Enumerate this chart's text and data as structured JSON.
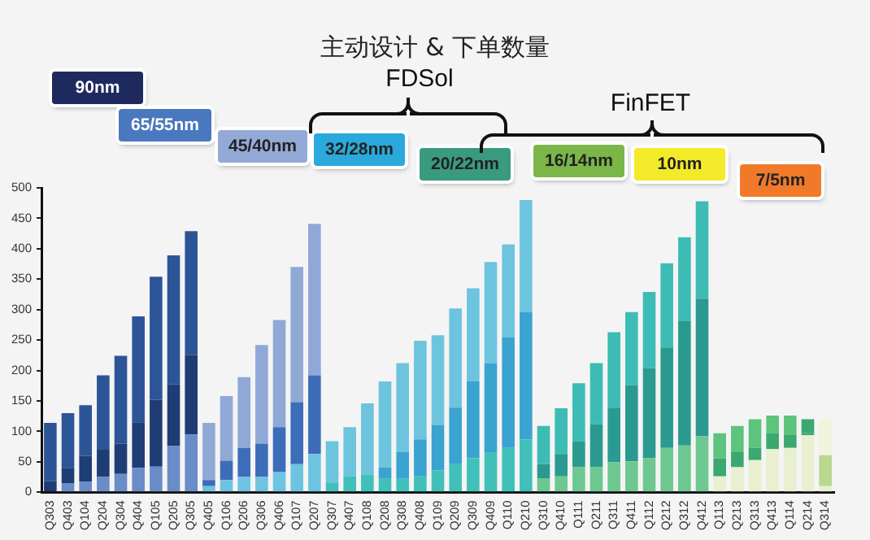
{
  "chart_data": {
    "type": "bar",
    "title": "主动设计 & 下单数量",
    "categories": [
      "Q303",
      "Q403",
      "Q104",
      "Q204",
      "Q304",
      "Q404",
      "Q105",
      "Q205",
      "Q305",
      "Q405",
      "Q106",
      "Q206",
      "Q306",
      "Q406",
      "Q107",
      "Q207",
      "Q307",
      "Q407",
      "Q108",
      "Q208",
      "Q308",
      "Q408",
      "Q109",
      "Q209",
      "Q309",
      "Q409",
      "Q110",
      "Q210",
      "Q310",
      "Q410",
      "Q111",
      "Q211",
      "Q311",
      "Q411",
      "Q112",
      "Q212",
      "Q312",
      "Q412",
      "Q113",
      "Q213",
      "Q313",
      "Q413",
      "Q114",
      "Q214",
      "Q314"
    ],
    "stacked": true,
    "series": [
      {
        "values": [
          0,
          15,
          17,
          25,
          30,
          40,
          42,
          76,
          95,
          10,
          20,
          25,
          25,
          33,
          46,
          63,
          15,
          26,
          29,
          22,
          22,
          26,
          36,
          46,
          56,
          66,
          73,
          87,
          23,
          26,
          41,
          41,
          49,
          51,
          56,
          73,
          77,
          92,
          26,
          41,
          53,
          71,
          73,
          94,
          10
        ],
        "colors": [
          "#6a8cc8",
          "#6a8cc8",
          "#6a8cc8",
          "#6a8cc8",
          "#6a8cc8",
          "#6a8cc8",
          "#6a8cc8",
          "#6a8cc8",
          "#6a8cc8",
          "#6ec3e0",
          "#6ec3e0",
          "#6ec3e0",
          "#6ec3e0",
          "#6ec3e0",
          "#6ec3e0",
          "#6ec3e0",
          "#40c0b8",
          "#40c0b8",
          "#40c0b8",
          "#40c0b8",
          "#40c0b8",
          "#40c0b8",
          "#40c0b8",
          "#40c0b8",
          "#40c0b8",
          "#40c0b8",
          "#40c0b8",
          "#40c0b8",
          "#6cc890",
          "#6cc890",
          "#6cc890",
          "#6cc890",
          "#6cc890",
          "#6cc890",
          "#6cc890",
          "#6cc890",
          "#6cc890",
          "#6cc890",
          "#e8f0d0",
          "#e8f0d0",
          "#e8f0d0",
          "#e8f0d0",
          "#e8f0d0",
          "#e8f0d0",
          "#e8f0d0"
        ]
      },
      {
        "values": [
          18,
          25,
          43,
          45,
          50,
          75,
          110,
          101,
          130,
          10,
          32,
          48,
          55,
          74,
          102,
          129,
          0,
          0,
          0,
          19,
          44,
          61,
          74,
          93,
          126,
          146,
          182,
          209,
          23,
          37,
          43,
          71,
          89,
          125,
          148,
          165,
          204,
          226,
          30,
          25,
          20,
          26,
          21,
          3,
          51
        ],
        "colors": [
          "#1f3d75",
          "#1f3d75",
          "#1f3d75",
          "#1f3d75",
          "#1f3d75",
          "#1f3d75",
          "#1f3d75",
          "#1f3d75",
          "#1f3d75",
          "#3d6cb8",
          "#3d6cb8",
          "#3d6cb8",
          "#3d6cb8",
          "#3d6cb8",
          "#3d6cb8",
          "#3d6cb8",
          "#3aa3d0",
          "#3aa3d0",
          "#3aa3d0",
          "#3aa3d0",
          "#3aa3d0",
          "#3aa3d0",
          "#3aa3d0",
          "#3aa3d0",
          "#3aa3d0",
          "#3aa3d0",
          "#3aa3d0",
          "#3aa3d0",
          "#2a9a90",
          "#2a9a90",
          "#2a9a90",
          "#2a9a90",
          "#2a9a90",
          "#2a9a90",
          "#2a9a90",
          "#2a9a90",
          "#2a9a90",
          "#2a9a90",
          "#3aa870",
          "#3aa870",
          "#3aa870",
          "#3aa870",
          "#3aa870",
          "#3aa870",
          "#b8d890"
        ]
      },
      {
        "values": [
          96,
          90,
          83,
          122,
          144,
          174,
          202,
          212,
          204,
          94,
          106,
          116,
          162,
          176,
          222,
          249,
          69,
          81,
          117,
          141,
          146,
          162,
          148,
          163,
          153,
          166,
          152,
          184,
          63,
          75,
          95,
          100,
          125,
          120,
          125,
          138,
          138,
          160,
          41,
          43,
          47,
          29,
          32,
          23,
          59
        ],
        "colors": [
          "#2c5597",
          "#2c5597",
          "#2c5597",
          "#2c5597",
          "#2c5597",
          "#2c5597",
          "#2c5597",
          "#2c5597",
          "#2c5597",
          "#8fa8d6",
          "#8fa8d6",
          "#8fa8d6",
          "#8fa8d6",
          "#8fa8d6",
          "#8fa8d6",
          "#8fa8d6",
          "#6cc4de",
          "#6cc4de",
          "#6cc4de",
          "#6cc4de",
          "#6cc4de",
          "#6cc4de",
          "#6cc4de",
          "#6cc4de",
          "#6cc4de",
          "#6cc4de",
          "#6cc4de",
          "#6cc4de",
          "#3cbcb4",
          "#3cbcb4",
          "#3cbcb4",
          "#3cbcb4",
          "#3cbcb4",
          "#3cbcb4",
          "#3cbcb4",
          "#3cbcb4",
          "#3cbcb4",
          "#3cbcb4",
          "#5cc47c",
          "#5cc47c",
          "#5cc47c",
          "#5cc47c",
          "#5cc47c",
          "#3aa870",
          "#f0f4dc"
        ]
      }
    ],
    "ylim": [
      0,
      500
    ],
    "yticks": [
      0,
      50,
      100,
      150,
      200,
      250,
      300,
      350,
      400,
      450,
      500
    ],
    "grid": false,
    "legend": false,
    "annotations": [
      "90nm",
      "65/55nm",
      "45/40nm",
      "32/28nm",
      "20/22nm",
      "16/14nm",
      "10nm",
      "7/5nm",
      "FDSol",
      "FinFET"
    ]
  }
}
